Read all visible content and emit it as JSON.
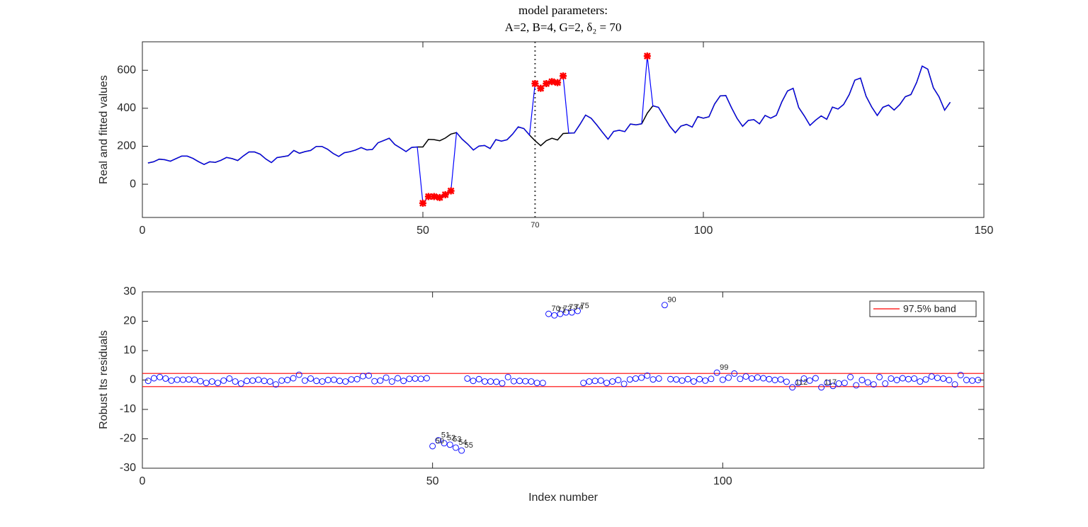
{
  "chart_data": [
    {
      "type": "line",
      "title_lines": [
        "model parameters:",
        "A=2, B=4, G=2, δ₂ = 70"
      ],
      "ylabel": "Real and fitted values",
      "xlim": [
        0,
        150
      ],
      "xticks": [
        0,
        50,
        100,
        150
      ],
      "ylim": [
        -175,
        750
      ],
      "yticks": [
        0,
        200,
        400,
        600
      ],
      "vline_x": 70,
      "x": [
        1,
        2,
        3,
        4,
        5,
        6,
        7,
        8,
        9,
        10,
        11,
        12,
        13,
        14,
        15,
        16,
        17,
        18,
        19,
        20,
        21,
        22,
        23,
        24,
        25,
        26,
        27,
        28,
        29,
        30,
        31,
        32,
        33,
        34,
        35,
        36,
        37,
        38,
        39,
        40,
        41,
        42,
        43,
        44,
        45,
        46,
        47,
        48,
        49,
        50,
        51,
        52,
        53,
        54,
        55,
        56,
        57,
        58,
        59,
        60,
        61,
        62,
        63,
        64,
        65,
        66,
        67,
        68,
        69,
        70,
        71,
        72,
        73,
        74,
        75,
        76,
        77,
        78,
        79,
        80,
        81,
        82,
        83,
        84,
        85,
        86,
        87,
        88,
        89,
        90,
        91,
        92,
        93,
        94,
        95,
        96,
        97,
        98,
        99,
        100,
        101,
        102,
        103,
        104,
        105,
        106,
        107,
        108,
        109,
        110,
        111,
        112,
        113,
        114,
        115,
        116,
        117,
        118,
        119,
        120,
        121,
        122,
        123,
        124,
        125,
        126,
        127,
        128,
        129,
        130,
        131,
        132,
        133,
        134,
        135,
        136,
        137,
        138,
        139,
        140,
        141,
        142,
        143,
        144
      ],
      "series": [
        {
          "name": "real",
          "color": "#0000ff",
          "values": [
            112,
            118,
            132,
            129,
            121,
            135,
            148,
            148,
            136,
            119,
            104,
            118,
            115,
            126,
            141,
            135,
            125,
            149,
            170,
            170,
            158,
            133,
            114,
            140,
            145,
            150,
            178,
            163,
            172,
            178,
            199,
            199,
            184,
            162,
            146,
            166,
            171,
            180,
            193,
            181,
            183,
            218,
            230,
            242,
            209,
            191,
            172,
            194,
            196,
            -100,
            -65,
            -65,
            -70,
            -55,
            -35,
            272,
            237,
            211,
            180,
            201,
            204,
            188,
            235,
            227,
            234,
            264,
            302,
            293,
            259,
            530,
            505,
            530,
            540,
            535,
            570,
            269,
            270,
            315,
            364,
            347,
            312,
            274,
            237,
            278,
            284,
            277,
            317,
            313,
            318,
            675,
            413,
            405,
            355,
            306,
            271,
            306,
            315,
            301,
            356,
            348,
            355,
            422,
            465,
            467,
            404,
            347,
            305,
            336,
            340,
            318,
            362,
            348,
            363,
            435,
            491,
            505,
            404,
            359,
            310,
            337,
            360,
            342,
            406,
            396,
            420,
            472,
            548,
            559,
            463,
            407,
            362,
            405,
            417,
            391,
            419,
            461,
            472,
            535,
            622,
            606,
            508,
            461,
            390,
            432
          ]
        },
        {
          "name": "fitted",
          "color": "#000000",
          "values": [
            112,
            118,
            132,
            129,
            121,
            135,
            148,
            148,
            136,
            119,
            104,
            118,
            115,
            126,
            141,
            135,
            125,
            149,
            170,
            170,
            158,
            133,
            114,
            140,
            145,
            150,
            178,
            163,
            172,
            178,
            199,
            199,
            184,
            162,
            146,
            166,
            171,
            180,
            193,
            181,
            183,
            218,
            230,
            242,
            209,
            191,
            172,
            194,
            196,
            196,
            236,
            235,
            229,
            243,
            264,
            272,
            237,
            211,
            180,
            201,
            204,
            188,
            235,
            227,
            234,
            264,
            302,
            293,
            259,
            229,
            203,
            229,
            242,
            233,
            267,
            269,
            270,
            315,
            364,
            347,
            312,
            274,
            237,
            278,
            284,
            277,
            317,
            313,
            318,
            374,
            413,
            405,
            355,
            306,
            271,
            306,
            315,
            301,
            356,
            348,
            355,
            422,
            465,
            467,
            404,
            347,
            305,
            336,
            340,
            318,
            362,
            348,
            363,
            435,
            491,
            505,
            404,
            359,
            310,
            337,
            360,
            342,
            406,
            396,
            420,
            472,
            548,
            559,
            463,
            407,
            362,
            405,
            417,
            391,
            419,
            461,
            472,
            535,
            622,
            606,
            508,
            461,
            390,
            432
          ]
        }
      ],
      "highlight": {
        "color": "#ff0000",
        "x": [
          50,
          51,
          52,
          53,
          54,
          55,
          70,
          71,
          72,
          73,
          74,
          75,
          90
        ]
      }
    },
    {
      "type": "scatter",
      "xlabel": "Index number",
      "ylabel": "Robust lts residuals",
      "xlim": [
        0,
        145
      ],
      "xticks": [
        0,
        50,
        100
      ],
      "ylim": [
        -30,
        30
      ],
      "yticks": [
        -30,
        -20,
        -10,
        0,
        10,
        20,
        30
      ],
      "color": "#0000ff",
      "band": {
        "name": "97.5% band",
        "color": "#ff0000",
        "value": 2.24
      },
      "legend": "upper right",
      "x": [
        1,
        2,
        3,
        4,
        5,
        6,
        7,
        8,
        9,
        10,
        11,
        12,
        13,
        14,
        15,
        16,
        17,
        18,
        19,
        20,
        21,
        22,
        23,
        24,
        25,
        26,
        27,
        28,
        29,
        30,
        31,
        32,
        33,
        34,
        35,
        36,
        37,
        38,
        39,
        40,
        41,
        42,
        43,
        44,
        45,
        46,
        47,
        48,
        49,
        50,
        51,
        52,
        53,
        54,
        55,
        56,
        57,
        58,
        59,
        60,
        61,
        62,
        63,
        64,
        65,
        66,
        67,
        68,
        69,
        70,
        71,
        72,
        73,
        74,
        75,
        76,
        77,
        78,
        79,
        80,
        81,
        82,
        83,
        84,
        85,
        86,
        87,
        88,
        89,
        90,
        91,
        92,
        93,
        94,
        95,
        96,
        97,
        98,
        99,
        100,
        101,
        102,
        103,
        104,
        105,
        106,
        107,
        108,
        109,
        110,
        111,
        112,
        113,
        114,
        115,
        116,
        117,
        118,
        119,
        120,
        121,
        122,
        123,
        124,
        125,
        126,
        127,
        128,
        129,
        130,
        131,
        132,
        133,
        134,
        135,
        136,
        137,
        138,
        139,
        140,
        141,
        142,
        143,
        144
      ],
      "values": [
        -0.3,
        0.6,
        1.0,
        0.5,
        -0.2,
        0.1,
        0.1,
        0.2,
        0.1,
        -0.4,
        -1.0,
        -0.5,
        -1.0,
        -0.2,
        0.5,
        -0.5,
        -1.2,
        -0.3,
        -0.2,
        0.1,
        -0.3,
        -0.5,
        -1.5,
        -0.2,
        0.0,
        0.6,
        1.8,
        -0.2,
        0.5,
        -0.3,
        -0.5,
        0.0,
        0.1,
        -0.3,
        -0.5,
        0.2,
        0.3,
        1.3,
        1.5,
        -0.4,
        -0.2,
        0.8,
        -0.5,
        0.6,
        -0.3,
        0.4,
        0.5,
        0.4,
        0.6,
        -22.5,
        -20.5,
        -21.5,
        -22,
        -23,
        -24,
        0.5,
        -0.3,
        0.3,
        -0.5,
        -0.5,
        -0.6,
        -1.1,
        1.0,
        -0.4,
        -0.3,
        -0.4,
        -0.5,
        -1.0,
        -1.0,
        22.5,
        22,
        22.5,
        23,
        23,
        23.5,
        -1.0,
        -0.5,
        -0.3,
        -0.2,
        -1.0,
        -0.5,
        0.0,
        -1.3,
        0.2,
        0.5,
        0.8,
        1.5,
        0.2,
        0.5,
        25.5,
        0.3,
        0.2,
        -0.2,
        0.3,
        -0.5,
        0.3,
        -0.2,
        0.4,
        2.5,
        0.1,
        0.8,
        2.2,
        0.4,
        1.2,
        0.5,
        0.9,
        0.6,
        0.3,
        0.0,
        0.2,
        -0.6,
        -2.5,
        -1.0,
        0.5,
        -0.2,
        0.6,
        -2.5,
        -1.0,
        -2.0,
        -1.2,
        -1.0,
        1.0,
        -1.8,
        0.0,
        -0.8,
        -1.5,
        1.0,
        -1.2,
        0.5,
        0.0,
        0.6,
        0.3,
        0.5,
        -0.5,
        0.2,
        1.2,
        0.7,
        0.5,
        0.0,
        -1.5,
        1.7,
        0.0,
        -0.2,
        0.0
      ],
      "labeled_points": [
        50,
        51,
        52,
        53,
        54,
        55,
        70,
        71,
        72,
        73,
        74,
        75,
        90,
        99,
        112,
        117
      ]
    }
  ]
}
